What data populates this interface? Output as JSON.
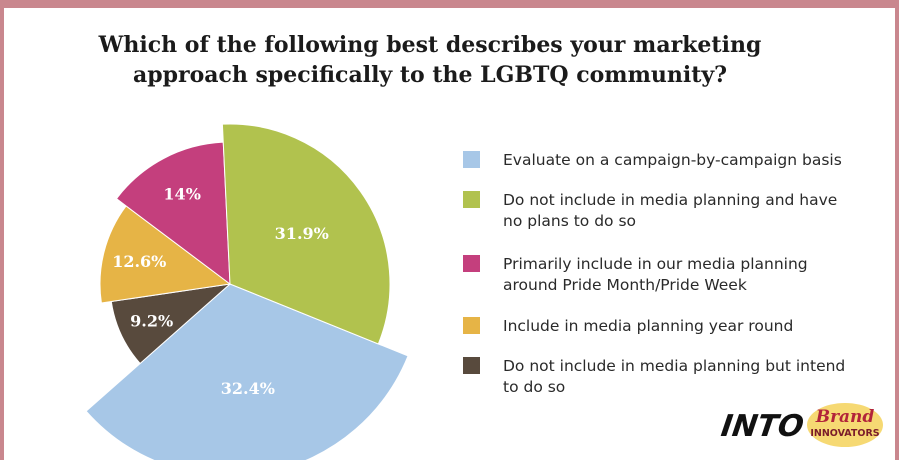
{
  "title_lines": [
    "Which of the following best describes your marketing",
    "approach specifically to the LGBTQ community?"
  ],
  "chart_data": {
    "type": "pie",
    "title": "Which of the following best describes your marketing approach specifically to the LGBTQ community?",
    "slices": [
      {
        "label": "Evaluate on a campaign-by-campaign basis",
        "value": 32.4,
        "display": "32.4%",
        "color": "#a7c7e7",
        "exploded": true
      },
      {
        "label": "Do not include in media planning but intend to do so",
        "value": 9.2,
        "display": "9.2%",
        "color": "#584a3d",
        "exploded": false
      },
      {
        "label": "Include in media planning year round",
        "value": 12.6,
        "display": "12.6%",
        "color": "#e6b446",
        "exploded": false
      },
      {
        "label": "Primarily include in our media planning around Pride Month/Pride Week",
        "value": 14,
        "display": "14%",
        "color": "#c43f7d",
        "exploded": true
      },
      {
        "label": "Do not include in media planning and have no plans to do so",
        "value": 31.9,
        "display": "31.9%",
        "color": "#b1c24e",
        "exploded": true
      }
    ],
    "legend_position": "right"
  },
  "legend": [
    {
      "lines": [
        "Evaluate on a campaign-by-campaign basis"
      ],
      "color": "#a7c7e7"
    },
    {
      "lines": [
        "Do not include in media planning and have",
        "no plans to do so"
      ],
      "color": "#b1c24e"
    },
    {
      "lines": [
        "Primarily include in our media planning",
        "around Pride Month/Pride Week"
      ],
      "color": "#c43f7d"
    },
    {
      "lines": [
        "Include in media planning year round"
      ],
      "color": "#e6b446"
    },
    {
      "lines": [
        "Do not include in media planning but intend",
        "to do so"
      ],
      "color": "#584a3d"
    }
  ],
  "logos": {
    "into": "INTO",
    "brand_top": "Brand",
    "brand_bottom": "INNOVATORS"
  }
}
